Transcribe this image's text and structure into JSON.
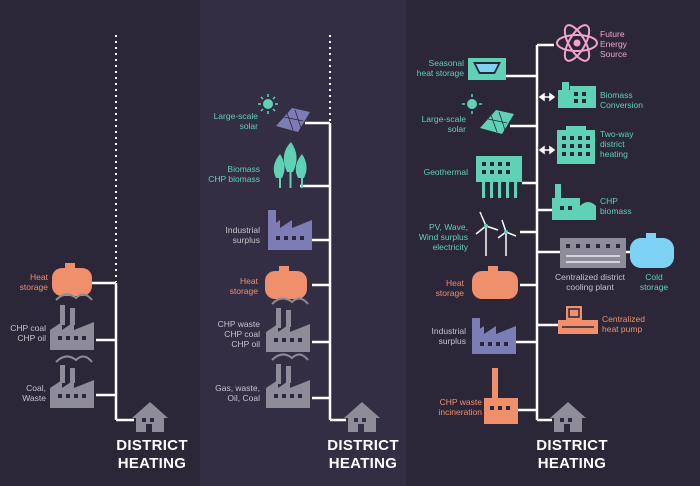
{
  "colors": {
    "teal": "#5fd2b5",
    "orange": "#f08f6c",
    "grey": "#8e8c98",
    "lavender": "#7d7db6",
    "pink": "#f0a6c8",
    "line": "#ffffff"
  },
  "panel1": {
    "heat_storage": "Heat\nstorage",
    "chp_coal_oil": "CHP coal\nCHP oil",
    "coal_waste": "Coal,\nWaste",
    "title": "DISTRICT\nHEATING"
  },
  "panel2": {
    "large_scale_solar": "Large-scale\nsolar",
    "biomass": "Biomass\nCHP biomass",
    "industrial_surplus": "Industrial\nsurplus",
    "heat_storage": "Heat\nstorage",
    "chp_waste_coal_oil": "CHP waste\nCHP coal\nCHP oil",
    "gas_waste_oil_coal": "Gas, waste,\nOil, Coal",
    "title": "DISTRICT\nHEATING"
  },
  "panel3": {
    "seasonal_heat_storage": "Seasonal\nheat storage",
    "large_scale_solar": "Large-scale\nsolar",
    "geothermal": "Geothermal",
    "pv_wave_wind": "PV, Wave,\nWind surplus\nelectricity",
    "heat_storage": "Heat\nstorage",
    "industrial_surplus": "Industrial\nsurplus",
    "chp_waste_incineration": "CHP waste\nincineration",
    "future_energy": "Future\nEnergy\nSource",
    "biomass_conversion": "Biomass\nConversion",
    "two_way_heating": "Two-way\ndistrict\nheating",
    "chp_biomass": "CHP\nbiomass",
    "centralized_cooling": "Centralized district\ncooling plant",
    "cold_storage": "Cold\nstorage",
    "centralized_heat_pump": "Centralized\nheat pump",
    "title": "DISTRICT\nHEATING"
  }
}
